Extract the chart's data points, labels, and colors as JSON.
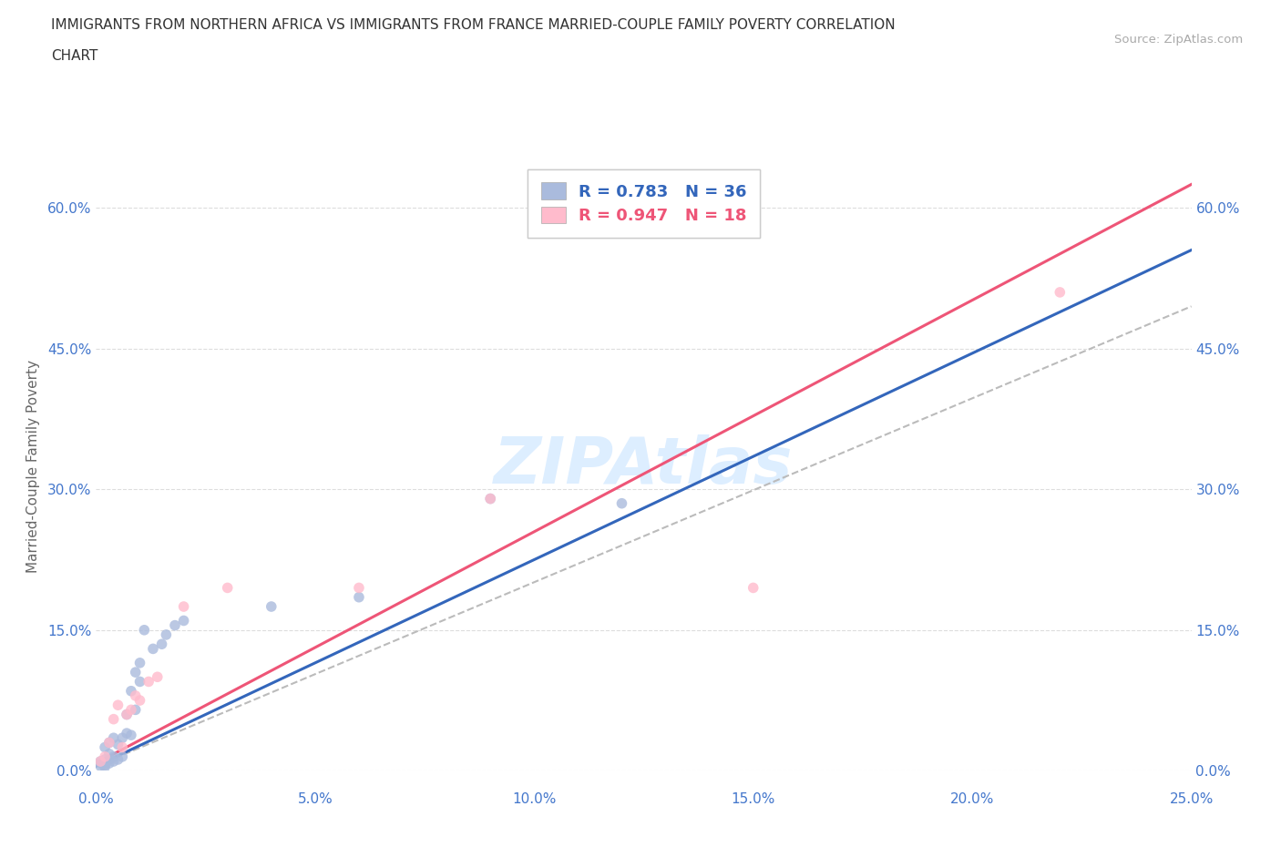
{
  "title_line1": "IMMIGRANTS FROM NORTHERN AFRICA VS IMMIGRANTS FROM FRANCE MARRIED-COUPLE FAMILY POVERTY CORRELATION",
  "title_line2": "CHART",
  "source_text": "Source: ZipAtlas.com",
  "ylabel": "Married-Couple Family Poverty",
  "xlim": [
    0.0,
    0.25
  ],
  "ylim": [
    0.0,
    0.65
  ],
  "xticks": [
    0.0,
    0.05,
    0.1,
    0.15,
    0.2,
    0.25
  ],
  "yticks": [
    0.0,
    0.15,
    0.3,
    0.45,
    0.6
  ],
  "xticklabels": [
    "0.0%",
    "5.0%",
    "10.0%",
    "15.0%",
    "20.0%",
    "25.0%"
  ],
  "yticklabels": [
    "0.0%",
    "15.0%",
    "30.0%",
    "45.0%",
    "60.0%"
  ],
  "blue_fill_color": "#AABBDD",
  "pink_fill_color": "#FFBBCC",
  "blue_line_color": "#3366BB",
  "pink_line_color": "#EE5577",
  "gray_dash_color": "#BBBBBB",
  "tick_color": "#4477CC",
  "watermark_color": "#DDEEFF",
  "grid_color": "#DDDDDD",
  "r_blue": 0.783,
  "n_blue": 36,
  "r_pink": 0.947,
  "n_pink": 18,
  "blue_scatter_x": [
    0.001,
    0.001,
    0.001,
    0.002,
    0.002,
    0.002,
    0.002,
    0.003,
    0.003,
    0.003,
    0.003,
    0.004,
    0.004,
    0.004,
    0.005,
    0.005,
    0.006,
    0.006,
    0.007,
    0.007,
    0.008,
    0.008,
    0.009,
    0.009,
    0.01,
    0.01,
    0.011,
    0.013,
    0.015,
    0.016,
    0.018,
    0.02,
    0.04,
    0.06,
    0.09,
    0.12
  ],
  "blue_scatter_y": [
    0.005,
    0.008,
    0.01,
    0.004,
    0.006,
    0.012,
    0.025,
    0.008,
    0.012,
    0.018,
    0.03,
    0.01,
    0.015,
    0.035,
    0.012,
    0.028,
    0.015,
    0.035,
    0.04,
    0.06,
    0.038,
    0.085,
    0.065,
    0.105,
    0.095,
    0.115,
    0.15,
    0.13,
    0.135,
    0.145,
    0.155,
    0.16,
    0.175,
    0.185,
    0.29,
    0.285
  ],
  "pink_scatter_x": [
    0.001,
    0.002,
    0.003,
    0.004,
    0.005,
    0.006,
    0.007,
    0.008,
    0.009,
    0.01,
    0.012,
    0.014,
    0.02,
    0.03,
    0.06,
    0.09,
    0.15,
    0.22
  ],
  "pink_scatter_y": [
    0.01,
    0.015,
    0.03,
    0.055,
    0.07,
    0.025,
    0.06,
    0.065,
    0.08,
    0.075,
    0.095,
    0.1,
    0.175,
    0.195,
    0.195,
    0.29,
    0.195,
    0.51
  ],
  "blue_trend_x": [
    0.0,
    0.25
  ],
  "blue_trend_y": [
    0.005,
    0.555
  ],
  "pink_trend_x": [
    0.0,
    0.25
  ],
  "pink_trend_y": [
    0.008,
    0.625
  ],
  "gray_trend_x": [
    0.0,
    0.25
  ],
  "gray_trend_y": [
    0.005,
    0.495
  ]
}
